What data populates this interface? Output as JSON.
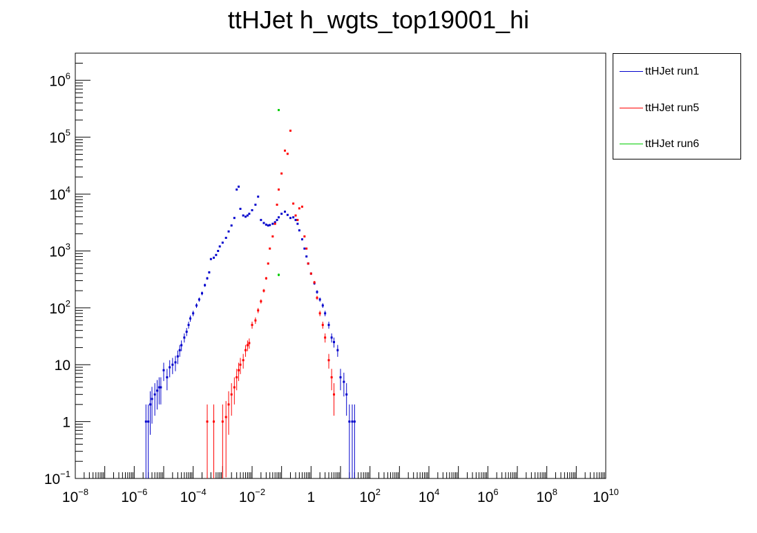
{
  "chart_data": {
    "type": "scatter",
    "title": "ttHJet h_wgts_top19001_hi",
    "xlabel": "",
    "ylabel": "",
    "x_scale": "log",
    "y_scale": "log",
    "xlim": [
      1e-08,
      10000000000.0
    ],
    "ylim": [
      0.1,
      3000000
    ],
    "x_ticks": [
      {
        "base": "10",
        "exp": "−8",
        "value": 1e-08
      },
      {
        "base": "10",
        "exp": "−6",
        "value": 1e-06
      },
      {
        "base": "10",
        "exp": "−4",
        "value": 0.0001
      },
      {
        "base": "10",
        "exp": "−2",
        "value": 0.01
      },
      {
        "base": "1",
        "exp": "",
        "value": 1
      },
      {
        "base": "10",
        "exp": "2",
        "value": 100
      },
      {
        "base": "10",
        "exp": "4",
        "value": 10000.0
      },
      {
        "base": "10",
        "exp": "6",
        "value": 1000000.0
      },
      {
        "base": "10",
        "exp": "8",
        "value": 100000000.0
      },
      {
        "base": "10",
        "exp": "10",
        "value": 10000000000.0
      }
    ],
    "y_ticks": [
      {
        "base": "10",
        "exp": "−1",
        "value": 0.1
      },
      {
        "base": "1",
        "exp": "",
        "value": 1
      },
      {
        "base": "10",
        "exp": "",
        "value": 10
      },
      {
        "base": "10",
        "exp": "2",
        "value": 100
      },
      {
        "base": "10",
        "exp": "3",
        "value": 1000
      },
      {
        "base": "10",
        "exp": "4",
        "value": 10000
      },
      {
        "base": "10",
        "exp": "5",
        "value": 100000
      },
      {
        "base": "10",
        "exp": "6",
        "value": 1000000
      }
    ],
    "legend_position": "outside-right",
    "series": [
      {
        "name": "ttHJet run1",
        "color": "#0000cc",
        "x": [
          2.5e-06,
          3e-06,
          3.5e-06,
          4e-06,
          5e-06,
          6e-06,
          7e-06,
          8e-06,
          1e-05,
          1.3e-05,
          1.6e-05,
          2e-05,
          2.5e-05,
          3e-05,
          3.5e-05,
          4e-05,
          5e-05,
          6e-05,
          7e-05,
          8e-05,
          0.0001,
          0.00013,
          0.00016,
          0.0002,
          0.00025,
          0.0003,
          0.00035,
          0.0004,
          0.0005,
          0.0006,
          0.0007,
          0.0008,
          0.001,
          0.0013,
          0.0016,
          0.002,
          0.0025,
          0.003,
          0.0035,
          0.004,
          0.005,
          0.006,
          0.007,
          0.008,
          0.01,
          0.013,
          0.016,
          0.02,
          0.025,
          0.03,
          0.035,
          0.04,
          0.05,
          0.06,
          0.07,
          0.08,
          0.1,
          0.13,
          0.16,
          0.2,
          0.25,
          0.3,
          0.35,
          0.4,
          0.5,
          0.6,
          0.7,
          0.8,
          1,
          1.3,
          1.6,
          2,
          2.5,
          3,
          4,
          5,
          6,
          8,
          10,
          13,
          16,
          20,
          25,
          30
        ],
        "y": [
          1,
          1,
          2,
          2.5,
          3,
          3.5,
          4,
          4,
          8,
          6,
          9,
          10,
          11,
          14,
          18,
          22,
          30,
          38,
          50,
          65,
          80,
          110,
          140,
          180,
          250,
          330,
          420,
          720,
          760,
          850,
          1000,
          1200,
          1400,
          1700,
          2200,
          2800,
          3800,
          12000,
          13500,
          5500,
          4200,
          4000,
          4200,
          4500,
          5200,
          6500,
          9000,
          3500,
          3100,
          2900,
          2800,
          2850,
          3000,
          3200,
          3500,
          3900,
          4500,
          4900,
          4300,
          3800,
          3900,
          3500,
          3000,
          2300,
          1600,
          1100,
          800,
          600,
          400,
          270,
          190,
          140,
          110,
          80,
          50,
          30,
          25,
          18,
          6,
          5,
          3,
          1,
          1,
          1
        ]
      },
      {
        "name": "ttHJet run5",
        "color": "#ff0000",
        "x": [
          0.0003,
          0.0005,
          0.001,
          0.0013,
          0.0016,
          0.002,
          0.0025,
          0.003,
          0.0035,
          0.004,
          0.005,
          0.006,
          0.007,
          0.008,
          0.01,
          0.013,
          0.016,
          0.02,
          0.025,
          0.03,
          0.035,
          0.04,
          0.05,
          0.06,
          0.07,
          0.08,
          0.1,
          0.13,
          0.16,
          0.2,
          0.25,
          0.3,
          0.35,
          0.4,
          0.5,
          0.6,
          0.7,
          0.8,
          1,
          1.3,
          1.6,
          2,
          2.5,
          3,
          4,
          5,
          6
        ],
        "y": [
          1,
          1,
          1,
          1.2,
          2,
          3,
          4,
          6,
          8,
          10,
          12,
          18,
          22,
          24,
          50,
          60,
          90,
          130,
          200,
          330,
          600,
          1100,
          1800,
          3000,
          6500,
          12000,
          23000,
          58000,
          51000,
          130000,
          6800,
          4200,
          3500,
          5600,
          6000,
          1800,
          1100,
          600,
          400,
          280,
          150,
          80,
          50,
          30,
          12,
          6,
          3
        ]
      },
      {
        "name": "ttHJet run6",
        "color": "#00cc00",
        "x": [
          0.08,
          0.08
        ],
        "y": [
          300000,
          380
        ]
      }
    ]
  }
}
